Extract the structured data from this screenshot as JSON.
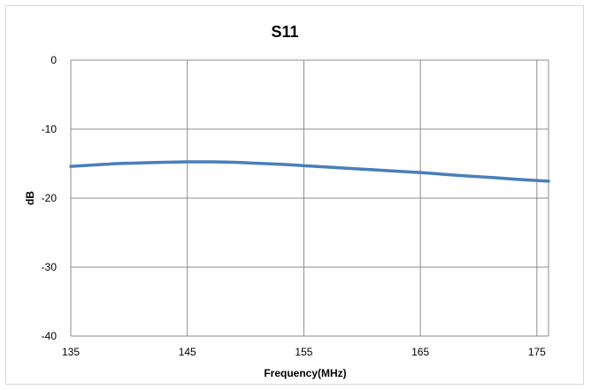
{
  "chart_data": {
    "type": "line",
    "title": "S11",
    "xlabel": "Frequency(MHz)",
    "ylabel": "dB",
    "xlim": [
      135,
      176
    ],
    "ylim": [
      -40,
      0
    ],
    "x_ticks": [
      135,
      145,
      155,
      165,
      175
    ],
    "y_ticks": [
      0,
      -10,
      -20,
      -30,
      -40
    ],
    "grid": true,
    "legend": "none",
    "series": [
      {
        "color": "#4a7ebb",
        "x": [
          135,
          137,
          139,
          141,
          143,
          145,
          147,
          149,
          151,
          153,
          155,
          157,
          159,
          161,
          163,
          165,
          167,
          169,
          171,
          173,
          175,
          176
        ],
        "y": [
          -15.4,
          -15.2,
          -15.0,
          -14.9,
          -14.8,
          -14.75,
          -14.75,
          -14.8,
          -14.95,
          -15.1,
          -15.3,
          -15.5,
          -15.7,
          -15.9,
          -16.1,
          -16.3,
          -16.55,
          -16.8,
          -17.0,
          -17.25,
          -17.45,
          -17.55
        ]
      }
    ]
  }
}
